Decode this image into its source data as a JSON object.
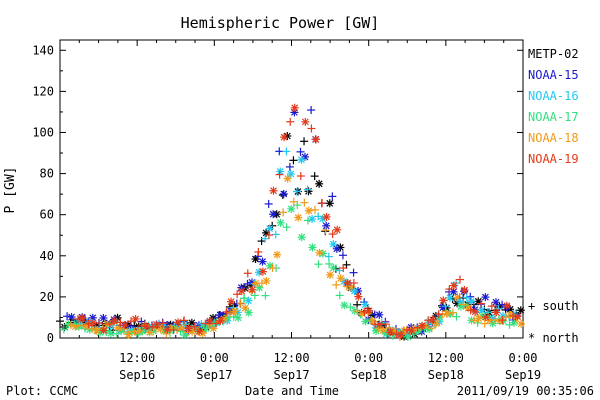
{
  "chart_data": {
    "type": "scatter",
    "title": "Hemispheric Power [GW]",
    "ylabel": "P [GW]",
    "xlabel": "Date and Time",
    "ylim": [
      0,
      145
    ],
    "y_ticks": [
      0,
      20,
      40,
      60,
      80,
      100,
      120,
      140
    ],
    "xlim_hours": [
      0,
      72
    ],
    "x_ticks": [
      {
        "hour": 12,
        "time": "12:00",
        "date": "Sep16"
      },
      {
        "hour": 24,
        "time": "0:00",
        "date": "Sep17"
      },
      {
        "hour": 36,
        "time": "12:00",
        "date": "Sep17"
      },
      {
        "hour": 48,
        "time": "0:00",
        "date": "Sep18"
      },
      {
        "hour": 60,
        "time": "12:00",
        "date": "Sep18"
      },
      {
        "hour": 72,
        "time": "0:00",
        "date": "Sep19"
      }
    ],
    "marker_legend": [
      {
        "symbol": "+",
        "label": "south"
      },
      {
        "symbol": "*",
        "label": "north"
      }
    ],
    "series": [
      {
        "name": "METP-02",
        "color": "#000000",
        "offset": 0.0,
        "scale": 1.0
      },
      {
        "name": "NOAA-15",
        "color": "#1a1ad0",
        "offset": 1.1,
        "scale": 1.08
      },
      {
        "name": "NOAA-16",
        "color": "#22c8f0",
        "offset": 2.2,
        "scale": 0.88
      },
      {
        "name": "NOAA-17",
        "color": "#33e080",
        "offset": 0.6,
        "scale": 0.62
      },
      {
        "name": "NOAA-18",
        "color": "#f09a1a",
        "offset": 1.7,
        "scale": 0.72
      },
      {
        "name": "NOAA-19",
        "color": "#e23a1a",
        "offset": 2.8,
        "scale": 1.02
      }
    ],
    "baseline_profile": [
      [
        0,
        8
      ],
      [
        6,
        7
      ],
      [
        12,
        6
      ],
      [
        18,
        6
      ],
      [
        22,
        6
      ],
      [
        25,
        10
      ],
      [
        27,
        16
      ],
      [
        29,
        24
      ],
      [
        31,
        34
      ],
      [
        33,
        55
      ],
      [
        34.5,
        80
      ],
      [
        36,
        96
      ],
      [
        37.5,
        95
      ],
      [
        39,
        85
      ],
      [
        40.5,
        70
      ],
      [
        42,
        55
      ],
      [
        43.5,
        40
      ],
      [
        45,
        28
      ],
      [
        46.5,
        20
      ],
      [
        48,
        12
      ],
      [
        50,
        7
      ],
      [
        52,
        4
      ],
      [
        54,
        3
      ],
      [
        56,
        4
      ],
      [
        58,
        8
      ],
      [
        59.5,
        14
      ],
      [
        61,
        22
      ],
      [
        62.5,
        25
      ],
      [
        64,
        18
      ],
      [
        66,
        14
      ],
      [
        68,
        12
      ],
      [
        70,
        12
      ],
      [
        72,
        10
      ]
    ],
    "footer_left": "Plot: CCMC",
    "footer_right": "2011/09/19 00:35:06"
  }
}
